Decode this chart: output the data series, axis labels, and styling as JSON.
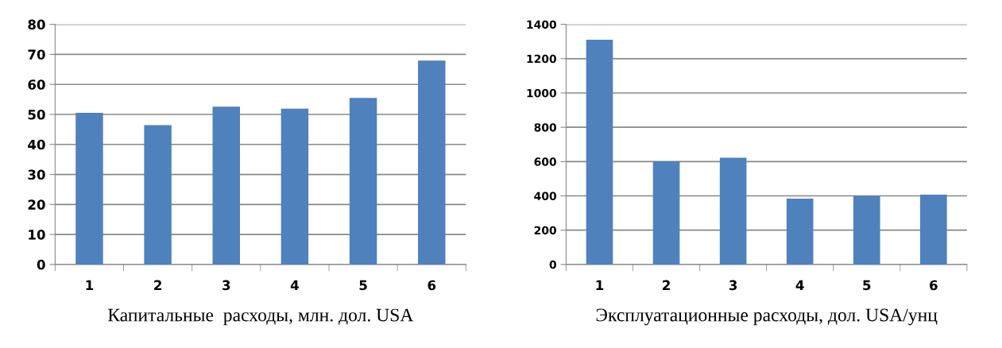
{
  "chart_data": [
    {
      "type": "bar",
      "xlabel": "Капитальные  расходы, млн. дол. USA",
      "categories": [
        "1",
        "2",
        "3",
        "4",
        "5",
        "6"
      ],
      "values": [
        50.5,
        46.4,
        52.6,
        51.9,
        55.5,
        67.9
      ],
      "color": "#4f81bd",
      "ylim": [
        0,
        80
      ],
      "yticks": [
        0,
        10,
        20,
        30,
        40,
        50,
        60,
        70,
        80
      ],
      "grid": "y"
    },
    {
      "type": "bar",
      "xlabel": "Эксплуатационные расходы, дол. USA/унц",
      "categories": [
        "1",
        "2",
        "3",
        "4",
        "5",
        "6"
      ],
      "values": [
        1310,
        602,
        623,
        384,
        399,
        407
      ],
      "color": "#4f81bd",
      "ylim": [
        0,
        1400
      ],
      "yticks": [
        0,
        200,
        400,
        600,
        800,
        1000,
        1200,
        1400
      ],
      "grid": "y"
    }
  ]
}
